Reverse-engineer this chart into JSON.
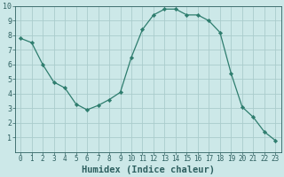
{
  "x": [
    0,
    1,
    2,
    3,
    4,
    5,
    6,
    7,
    8,
    9,
    10,
    11,
    12,
    13,
    14,
    15,
    16,
    17,
    18,
    19,
    20,
    21,
    22,
    23
  ],
  "y": [
    7.8,
    7.5,
    6.0,
    4.8,
    4.4,
    3.3,
    2.9,
    3.2,
    3.6,
    4.1,
    6.5,
    8.4,
    9.4,
    9.8,
    9.8,
    9.4,
    9.4,
    9.0,
    8.2,
    5.4,
    3.1,
    2.4,
    1.4,
    0.8
  ],
  "xlabel": "Humidex (Indice chaleur)",
  "xlim": [
    -0.5,
    23.5
  ],
  "ylim": [
    0,
    10
  ],
  "xticks": [
    0,
    1,
    2,
    3,
    4,
    5,
    6,
    7,
    8,
    9,
    10,
    11,
    12,
    13,
    14,
    15,
    16,
    17,
    18,
    19,
    20,
    21,
    22,
    23
  ],
  "yticks": [
    1,
    2,
    3,
    4,
    5,
    6,
    7,
    8,
    9,
    10
  ],
  "line_color": "#2e7d6e",
  "marker_color": "#2e7d6e",
  "bg_color": "#cce8e8",
  "grid_color": "#aacccc",
  "tick_fontsize": 5.5,
  "xlabel_fontsize": 7.5
}
